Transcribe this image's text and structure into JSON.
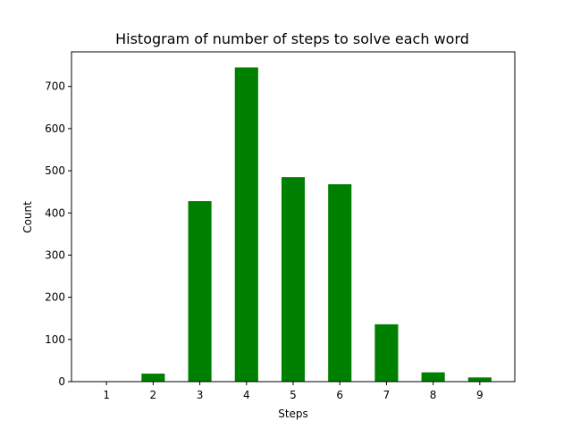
{
  "chart_data": {
    "type": "bar",
    "title": "Histogram of number of steps to solve each word",
    "xlabel": "Steps",
    "ylabel": "Count",
    "categories": [
      "1",
      "2",
      "3",
      "4",
      "5",
      "6",
      "7",
      "8",
      "9"
    ],
    "values": [
      0,
      19,
      428,
      745,
      485,
      468,
      136,
      22,
      10
    ],
    "xlim": [
      0.25,
      9.75
    ],
    "ylim": [
      0,
      782
    ],
    "yticks": [
      0,
      100,
      200,
      300,
      400,
      500,
      600,
      700
    ],
    "bar_color": "#008000",
    "grid": false,
    "legend": "none"
  }
}
